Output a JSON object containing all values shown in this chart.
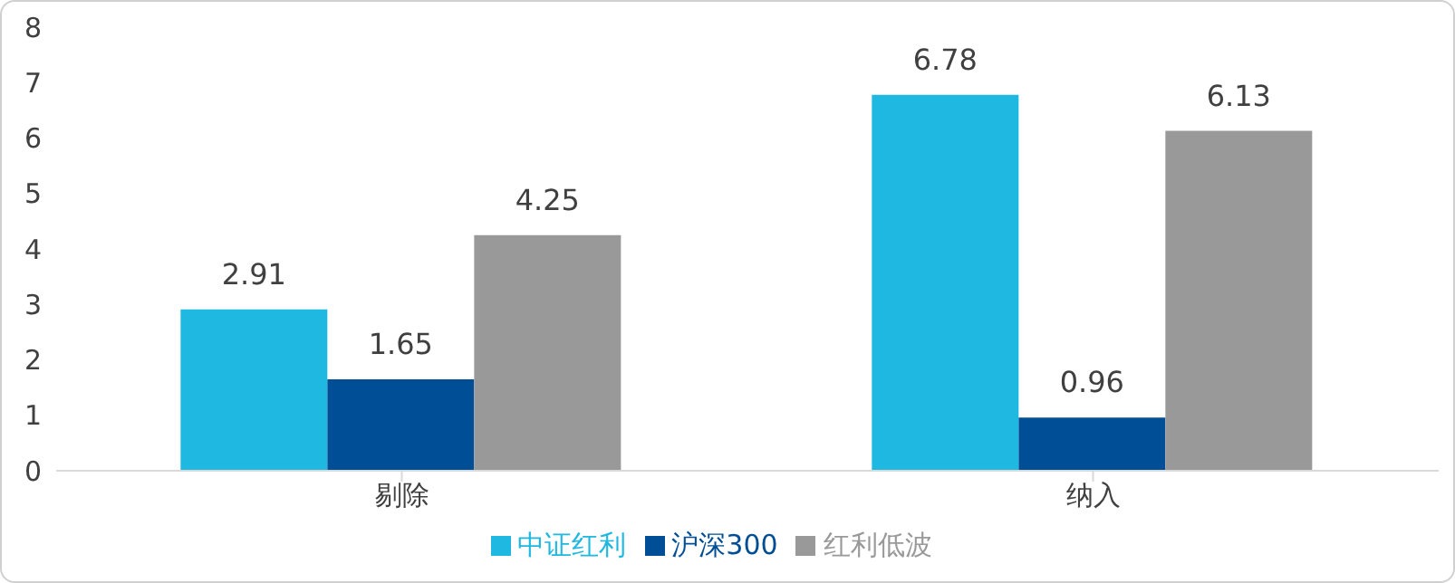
{
  "chart_data": {
    "type": "bar",
    "categories": [
      "剔除",
      "纳入"
    ],
    "series": [
      {
        "name": "中证红利",
        "color": "#1fb8e0",
        "values": [
          2.91,
          6.78
        ]
      },
      {
        "name": "沪深300",
        "color": "#004f96",
        "values": [
          1.65,
          0.96
        ]
      },
      {
        "name": "红利低波",
        "color": "#999999",
        "values": [
          4.25,
          6.13
        ]
      }
    ],
    "ylim": [
      0,
      8
    ],
    "yticks": [
      0,
      1,
      2,
      3,
      4,
      5,
      6,
      7,
      8
    ],
    "grid": false,
    "legend": "bottom",
    "data_labels": true
  }
}
